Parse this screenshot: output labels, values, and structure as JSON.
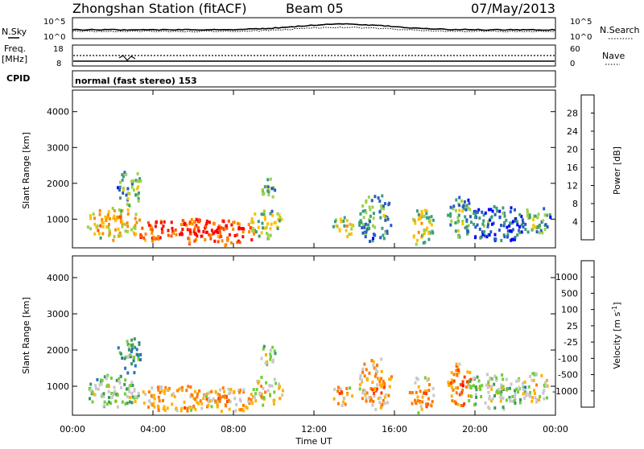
{
  "header": {
    "station": "Zhongshan Station (fitACF)",
    "beam": "Beam 05",
    "date": "07/May/2013"
  },
  "status_panels": {
    "nsky_label": "N.Sky",
    "nsky_ticks": [
      "10^5",
      "10^0"
    ],
    "nsearch_label": "N.Search",
    "nsearch_ticks": [
      "10^5",
      "10^0"
    ],
    "freq_label_1": "Freq.",
    "freq_label_2": "[MHz]",
    "freq_ticks": [
      "18",
      "8"
    ],
    "nave_label": "Nave",
    "nave_ticks": [
      "60",
      "0"
    ],
    "cpid_label": "CPID",
    "cpid_text": "normal (fast stereo) 153"
  },
  "chart_data": [
    {
      "type": "heatmap",
      "name": "power",
      "ylabel": "Slant Range [km]",
      "yticks": [
        "1000",
        "2000",
        "3000",
        "4000"
      ],
      "ylim": [
        200,
        4600
      ],
      "colorbar_label": "Power [dB]",
      "colorbar_ticks": [
        "4",
        "8",
        "12",
        "16",
        "20",
        "24",
        "28"
      ],
      "colors": [
        "#0000ff",
        "#2a5cc0",
        "#3aa07a",
        "#9cd24a",
        "#ffc000",
        "#ff8a00",
        "#ff5000",
        "#ff0000"
      ],
      "blobs": [
        {
          "t": 2.0,
          "r": 900,
          "dt": 1.3,
          "dr": 450,
          "v": 5
        },
        {
          "t": 5.2,
          "r": 700,
          "dt": 2.2,
          "dr": 350,
          "v": 7
        },
        {
          "t": 7.8,
          "r": 650,
          "dt": 1.2,
          "dr": 350,
          "v": 7
        },
        {
          "t": 9.6,
          "r": 900,
          "dt": 0.8,
          "dr": 400,
          "v": 4
        },
        {
          "t": 2.8,
          "r": 1900,
          "dt": 0.6,
          "dr": 500,
          "v": 3
        },
        {
          "t": 9.7,
          "r": 1900,
          "dt": 0.4,
          "dr": 300,
          "v": 3
        },
        {
          "t": 13.4,
          "r": 800,
          "dt": 0.5,
          "dr": 300,
          "v": 4
        },
        {
          "t": 15.0,
          "r": 1100,
          "dt": 0.8,
          "dr": 700,
          "v": 3
        },
        {
          "t": 17.3,
          "r": 800,
          "dt": 0.6,
          "dr": 500,
          "v": 4
        },
        {
          "t": 19.2,
          "r": 1100,
          "dt": 0.6,
          "dr": 600,
          "v": 3
        },
        {
          "t": 21.0,
          "r": 900,
          "dt": 1.5,
          "dr": 500,
          "v": 2
        },
        {
          "t": 23.0,
          "r": 1000,
          "dt": 0.7,
          "dr": 400,
          "v": 3
        }
      ]
    },
    {
      "type": "heatmap",
      "name": "velocity",
      "ylabel": "Slant Range [km]",
      "yticks": [
        "1000",
        "2000",
        "3000",
        "4000"
      ],
      "ylim": [
        200,
        4600
      ],
      "xlabel": "Time UT",
      "xticks": [
        "00:00",
        "04:00",
        "08:00",
        "12:00",
        "16:00",
        "20:00",
        "00:00"
      ],
      "xlim": [
        0,
        24
      ],
      "colorbar_label": "Velocity [m s^-1]",
      "colorbar_ticks": [
        "1000",
        "500",
        "100",
        "25",
        "-25",
        "-100",
        "-500",
        "-1000"
      ],
      "colors": [
        "#2a3fc0",
        "#2a73b0",
        "#3c9a5c",
        "#6fcf3a",
        "#c8c8c8",
        "#ffb000",
        "#ff7a00",
        "#ff4000",
        "#ff0000"
      ],
      "blobs": [
        {
          "t": 2.0,
          "r": 900,
          "dt": 1.3,
          "dr": 450,
          "v": 4
        },
        {
          "t": 5.2,
          "r": 700,
          "dt": 2.2,
          "dr": 350,
          "v": 6
        },
        {
          "t": 7.8,
          "r": 650,
          "dt": 1.2,
          "dr": 350,
          "v": 6
        },
        {
          "t": 9.6,
          "r": 900,
          "dt": 0.8,
          "dr": 400,
          "v": 5
        },
        {
          "t": 2.8,
          "r": 1900,
          "dt": 0.6,
          "dr": 500,
          "v": 3
        },
        {
          "t": 9.7,
          "r": 1900,
          "dt": 0.4,
          "dr": 300,
          "v": 4
        },
        {
          "t": 13.4,
          "r": 800,
          "dt": 0.5,
          "dr": 300,
          "v": 6
        },
        {
          "t": 15.0,
          "r": 1100,
          "dt": 0.8,
          "dr": 700,
          "v": 6
        },
        {
          "t": 17.3,
          "r": 800,
          "dt": 0.6,
          "dr": 500,
          "v": 6
        },
        {
          "t": 19.2,
          "r": 1100,
          "dt": 0.6,
          "dr": 600,
          "v": 7
        },
        {
          "t": 21.0,
          "r": 900,
          "dt": 1.5,
          "dr": 500,
          "v": 4
        },
        {
          "t": 23.0,
          "r": 1000,
          "dt": 0.7,
          "dr": 400,
          "v": 5
        }
      ]
    }
  ]
}
